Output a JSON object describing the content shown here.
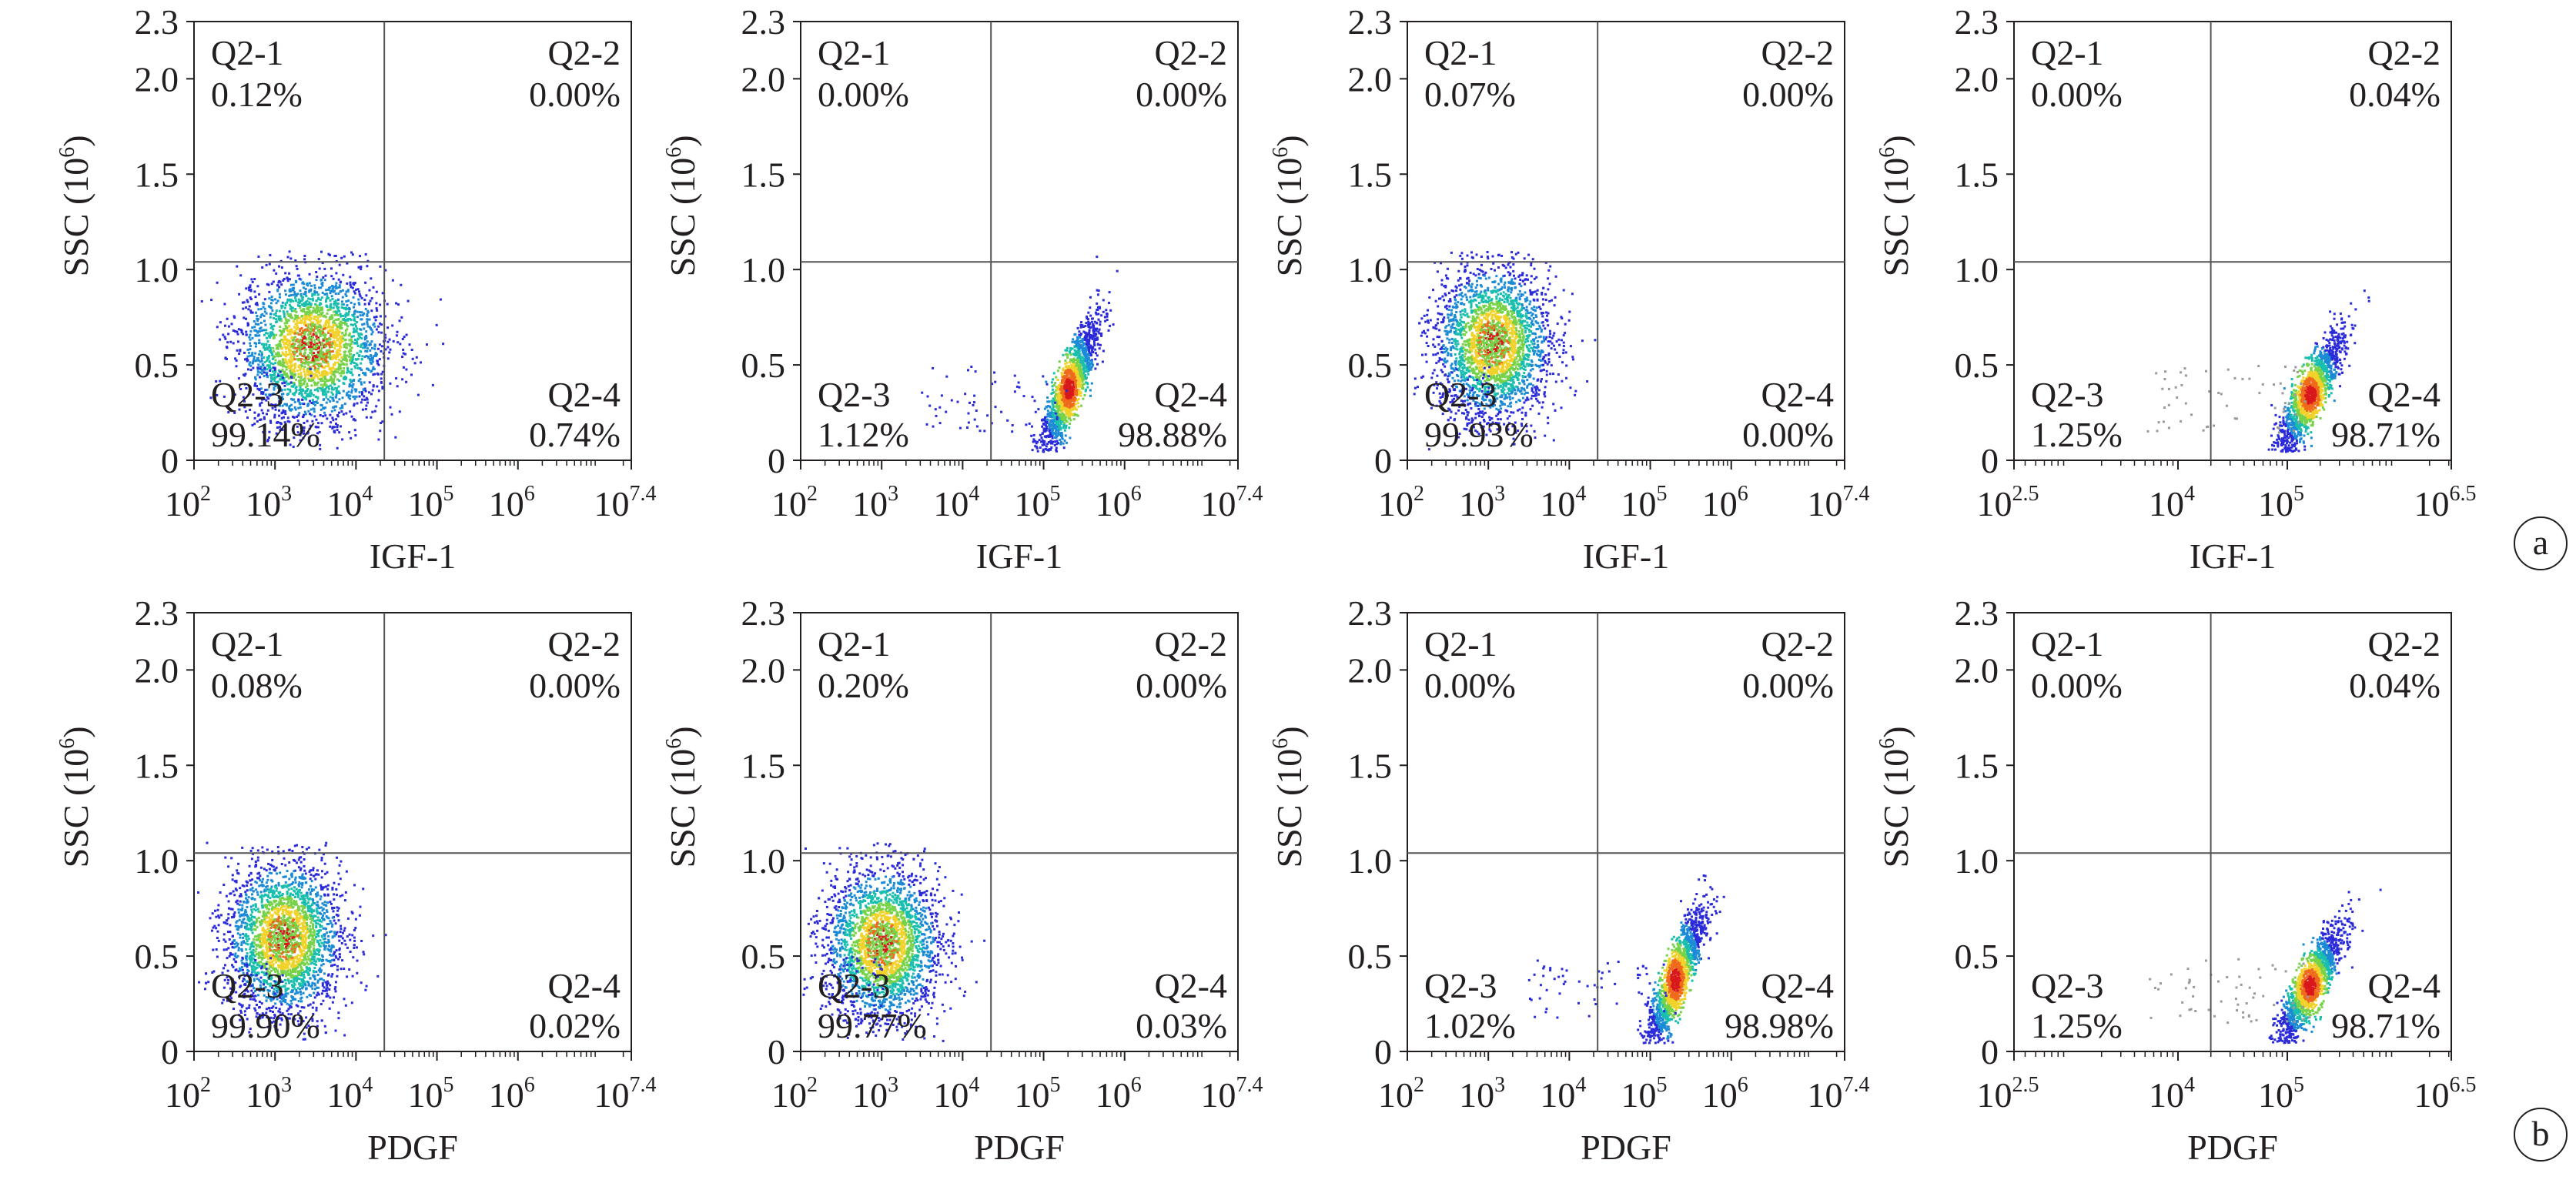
{
  "colors": {
    "axis": "#231f20",
    "gate": "#555555",
    "density": [
      "#2b2bd9",
      "#1c8bd6",
      "#19bfae",
      "#76d248",
      "#f0d22a",
      "#ef6a1c",
      "#d9181c"
    ],
    "gray_dots": "#9a9a9a"
  },
  "row_labels": [
    "a",
    "b"
  ],
  "chart_data": [
    {
      "type": "scatter",
      "id": "a1",
      "row": 0,
      "col": 0,
      "xlabel": "IGF-1",
      "ylabel": "SSC (10",
      "ylabel_sup": "6",
      "ylabel_close": ")",
      "x_log_range": [
        2,
        7.4
      ],
      "ylim": [
        0,
        2.3
      ],
      "x_ticks": [
        {
          "base": "10",
          "exp": "2",
          "v": 2
        },
        {
          "base": "10",
          "exp": "3",
          "v": 3
        },
        {
          "base": "10",
          "exp": "4",
          "v": 4
        },
        {
          "base": "10",
          "exp": "5",
          "v": 5
        },
        {
          "base": "10",
          "exp": "6",
          "v": 6
        },
        {
          "base": "10",
          "exp": "7.4",
          "v": 7.4
        }
      ],
      "y_ticks": [
        "0",
        "0.5",
        "1.0",
        "1.5",
        "2.0",
        "2.3"
      ],
      "gate": {
        "x_log": 4.35,
        "y": 1.04
      },
      "quadrants": {
        "tl": {
          "name": "Q2-1",
          "pct": "0.12%"
        },
        "tr": {
          "name": "Q2-2",
          "pct": "0.00%"
        },
        "bl": {
          "name": "Q2-3",
          "pct": "99.14%"
        },
        "br": {
          "name": "Q2-4",
          "pct": "0.74%"
        }
      },
      "population": {
        "center_x_log": 3.45,
        "center_y": 0.6,
        "spread_x": 0.45,
        "spread_y": 0.2,
        "shape": "blob"
      }
    },
    {
      "type": "scatter",
      "id": "a2",
      "row": 0,
      "col": 1,
      "xlabel": "IGF-1",
      "ylabel": "SSC (10",
      "ylabel_sup": "6",
      "ylabel_close": ")",
      "x_log_range": [
        2,
        7.4
      ],
      "ylim": [
        0,
        2.3
      ],
      "x_ticks": [
        {
          "base": "10",
          "exp": "2",
          "v": 2
        },
        {
          "base": "10",
          "exp": "3",
          "v": 3
        },
        {
          "base": "10",
          "exp": "4",
          "v": 4
        },
        {
          "base": "10",
          "exp": "5",
          "v": 5
        },
        {
          "base": "10",
          "exp": "6",
          "v": 6
        },
        {
          "base": "10",
          "exp": "7.4",
          "v": 7.4
        }
      ],
      "y_ticks": [
        "0",
        "0.5",
        "1.0",
        "1.5",
        "2.0",
        "2.3"
      ],
      "gate": {
        "x_log": 4.35,
        "y": 1.04
      },
      "quadrants": {
        "tl": {
          "name": "Q2-1",
          "pct": "0.00%"
        },
        "tr": {
          "name": "Q2-2",
          "pct": "0.00%"
        },
        "bl": {
          "name": "Q2-3",
          "pct": "1.12%"
        },
        "br": {
          "name": "Q2-4",
          "pct": "98.88%"
        }
      },
      "population": {
        "center_x_log": 5.3,
        "center_y": 0.38,
        "spread_x": 0.18,
        "spread_y": 0.17,
        "shape": "ellipse"
      }
    },
    {
      "type": "scatter",
      "id": "a3",
      "row": 0,
      "col": 2,
      "xlabel": "IGF-1",
      "ylabel": "SSC (10",
      "ylabel_sup": "6",
      "ylabel_close": ")",
      "x_log_range": [
        2,
        7.4
      ],
      "ylim": [
        0,
        2.3
      ],
      "x_ticks": [
        {
          "base": "10",
          "exp": "2",
          "v": 2
        },
        {
          "base": "10",
          "exp": "3",
          "v": 3
        },
        {
          "base": "10",
          "exp": "4",
          "v": 4
        },
        {
          "base": "10",
          "exp": "5",
          "v": 5
        },
        {
          "base": "10",
          "exp": "6",
          "v": 6
        },
        {
          "base": "10",
          "exp": "7.4",
          "v": 7.4
        }
      ],
      "y_ticks": [
        "0",
        "0.5",
        "1.0",
        "1.5",
        "2.0",
        "2.3"
      ],
      "gate": {
        "x_log": 4.35,
        "y": 1.04
      },
      "quadrants": {
        "tl": {
          "name": "Q2-1",
          "pct": "0.07%"
        },
        "tr": {
          "name": "Q2-2",
          "pct": "0.00%"
        },
        "bl": {
          "name": "Q2-3",
          "pct": "99.93%"
        },
        "br": {
          "name": "Q2-4",
          "pct": "0.00%"
        }
      },
      "population": {
        "center_x_log": 3.05,
        "center_y": 0.62,
        "spread_x": 0.35,
        "spread_y": 0.2,
        "shape": "blob"
      }
    },
    {
      "type": "scatter",
      "id": "a4",
      "row": 0,
      "col": 3,
      "xlabel": "IGF-1",
      "ylabel": "SSC (10",
      "ylabel_sup": "6",
      "ylabel_close": ")",
      "x_log_range": [
        2.5,
        6.5
      ],
      "ylim": [
        0,
        2.3
      ],
      "x_ticks": [
        {
          "base": "10",
          "exp": "2.5",
          "v": 2.5
        },
        {
          "base": "10",
          "exp": "4",
          "v": 4
        },
        {
          "base": "10",
          "exp": "5",
          "v": 5
        },
        {
          "base": "10",
          "exp": "6.5",
          "v": 6.5
        }
      ],
      "y_ticks": [
        "0",
        "0.5",
        "1.0",
        "1.5",
        "2.0",
        "2.3"
      ],
      "gate": {
        "x_log": 4.3,
        "y": 1.04
      },
      "quadrants": {
        "tl": {
          "name": "Q2-1",
          "pct": "0.00%"
        },
        "tr": {
          "name": "Q2-2",
          "pct": "0.04%"
        },
        "bl": {
          "name": "Q2-3",
          "pct": "1.25%"
        },
        "br": {
          "name": "Q2-4",
          "pct": "98.71%"
        }
      },
      "population": {
        "center_x_log": 5.2,
        "center_y": 0.35,
        "spread_x": 0.15,
        "spread_y": 0.15,
        "shape": "ellipse"
      }
    },
    {
      "type": "scatter",
      "id": "b1",
      "row": 1,
      "col": 0,
      "xlabel": "PDGF",
      "ylabel": "SSC (10",
      "ylabel_sup": "6",
      "ylabel_close": ")",
      "x_log_range": [
        2,
        7.4
      ],
      "ylim": [
        0,
        2.3
      ],
      "x_ticks": [
        {
          "base": "10",
          "exp": "2",
          "v": 2
        },
        {
          "base": "10",
          "exp": "3",
          "v": 3
        },
        {
          "base": "10",
          "exp": "4",
          "v": 4
        },
        {
          "base": "10",
          "exp": "5",
          "v": 5
        },
        {
          "base": "10",
          "exp": "6",
          "v": 6
        },
        {
          "base": "10",
          "exp": "7.4",
          "v": 7.4
        }
      ],
      "y_ticks": [
        "0",
        "0.5",
        "1.0",
        "1.5",
        "2.0",
        "2.3"
      ],
      "gate": {
        "x_log": 4.35,
        "y": 1.04
      },
      "quadrants": {
        "tl": {
          "name": "Q2-1",
          "pct": "0.08%"
        },
        "tr": {
          "name": "Q2-2",
          "pct": "0.00%"
        },
        "bl": {
          "name": "Q2-3",
          "pct": "99.90%"
        },
        "br": {
          "name": "Q2-4",
          "pct": "0.02%"
        }
      },
      "population": {
        "center_x_log": 3.1,
        "center_y": 0.6,
        "spread_x": 0.35,
        "spread_y": 0.2,
        "shape": "blob"
      }
    },
    {
      "type": "scatter",
      "id": "b2",
      "row": 1,
      "col": 1,
      "xlabel": "PDGF",
      "ylabel": "SSC (10",
      "ylabel_sup": "6",
      "ylabel_close": ")",
      "x_log_range": [
        2,
        7.4
      ],
      "ylim": [
        0,
        2.3
      ],
      "x_ticks": [
        {
          "base": "10",
          "exp": "2",
          "v": 2
        },
        {
          "base": "10",
          "exp": "3",
          "v": 3
        },
        {
          "base": "10",
          "exp": "4",
          "v": 4
        },
        {
          "base": "10",
          "exp": "5",
          "v": 5
        },
        {
          "base": "10",
          "exp": "6",
          "v": 6
        },
        {
          "base": "10",
          "exp": "7.4",
          "v": 7.4
        }
      ],
      "y_ticks": [
        "0",
        "0.5",
        "1.0",
        "1.5",
        "2.0",
        "2.3"
      ],
      "gate": {
        "x_log": 4.35,
        "y": 1.04
      },
      "quadrants": {
        "tl": {
          "name": "Q2-1",
          "pct": "0.20%"
        },
        "tr": {
          "name": "Q2-2",
          "pct": "0.00%"
        },
        "bl": {
          "name": "Q2-3",
          "pct": "99.77%"
        },
        "br": {
          "name": "Q2-4",
          "pct": "0.03%"
        }
      },
      "population": {
        "center_x_log": 3.0,
        "center_y": 0.57,
        "spread_x": 0.35,
        "spread_y": 0.2,
        "shape": "blob"
      }
    },
    {
      "type": "scatter",
      "id": "b3",
      "row": 1,
      "col": 2,
      "xlabel": "PDGF",
      "ylabel": "SSC (10",
      "ylabel_sup": "6",
      "ylabel_close": ")",
      "x_log_range": [
        2,
        7.4
      ],
      "ylim": [
        0,
        2.3
      ],
      "x_ticks": [
        {
          "base": "10",
          "exp": "2",
          "v": 2
        },
        {
          "base": "10",
          "exp": "3",
          "v": 3
        },
        {
          "base": "10",
          "exp": "4",
          "v": 4
        },
        {
          "base": "10",
          "exp": "5",
          "v": 5
        },
        {
          "base": "10",
          "exp": "6",
          "v": 6
        },
        {
          "base": "10",
          "exp": "7.4",
          "v": 7.4
        }
      ],
      "y_ticks": [
        "0",
        "0.5",
        "1.0",
        "1.5",
        "2.0",
        "2.3"
      ],
      "gate": {
        "x_log": 4.35,
        "y": 1.04
      },
      "quadrants": {
        "tl": {
          "name": "Q2-1",
          "pct": "0.00%"
        },
        "tr": {
          "name": "Q2-2",
          "pct": "0.00%"
        },
        "bl": {
          "name": "Q2-3",
          "pct": "1.02%"
        },
        "br": {
          "name": "Q2-4",
          "pct": "98.98%"
        }
      },
      "population": {
        "center_x_log": 5.3,
        "center_y": 0.38,
        "spread_x": 0.18,
        "spread_y": 0.18,
        "shape": "ellipse"
      }
    },
    {
      "type": "scatter",
      "id": "b4",
      "row": 1,
      "col": 3,
      "xlabel": "PDGF",
      "ylabel": "SSC (10",
      "ylabel_sup": "6",
      "ylabel_close": ")",
      "x_log_range": [
        2.5,
        6.5
      ],
      "ylim": [
        0,
        2.3
      ],
      "x_ticks": [
        {
          "base": "10",
          "exp": "2.5",
          "v": 2.5
        },
        {
          "base": "10",
          "exp": "4",
          "v": 4
        },
        {
          "base": "10",
          "exp": "5",
          "v": 5
        },
        {
          "base": "10",
          "exp": "6.5",
          "v": 6.5
        }
      ],
      "y_ticks": [
        "0",
        "0.5",
        "1.0",
        "1.5",
        "2.0",
        "2.3"
      ],
      "gate": {
        "x_log": 4.3,
        "y": 1.04
      },
      "quadrants": {
        "tl": {
          "name": "Q2-1",
          "pct": "0.00%"
        },
        "tr": {
          "name": "Q2-2",
          "pct": "0.04%"
        },
        "bl": {
          "name": "Q2-3",
          "pct": "1.25%"
        },
        "br": {
          "name": "Q2-4",
          "pct": "98.71%"
        }
      },
      "population": {
        "center_x_log": 5.2,
        "center_y": 0.35,
        "spread_x": 0.15,
        "spread_y": 0.15,
        "shape": "ellipse"
      }
    }
  ]
}
